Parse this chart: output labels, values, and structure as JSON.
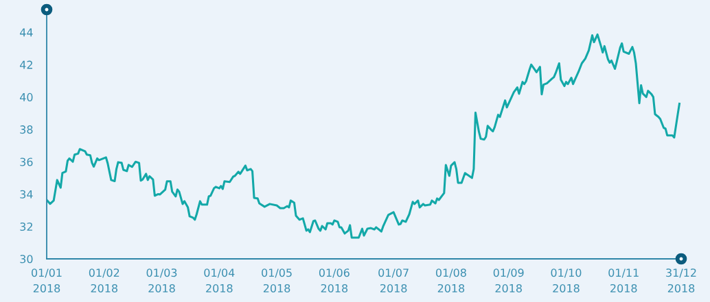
{
  "chart_data": {
    "type": "line",
    "x": [
      "2018-01-01",
      "2018-01-03",
      "2018-01-05",
      "2018-01-07",
      "2018-01-09",
      "2018-01-10",
      "2018-01-12",
      "2018-01-13",
      "2018-01-14",
      "2018-01-16",
      "2018-01-17",
      "2018-01-19",
      "2018-01-20",
      "2018-01-23",
      "2018-01-24",
      "2018-01-26",
      "2018-01-27",
      "2018-01-28",
      "2018-01-30",
      "2018-01-31",
      "2018-02-04",
      "2018-02-05",
      "2018-02-07",
      "2018-02-09",
      "2018-02-10",
      "2018-02-11",
      "2018-02-13",
      "2018-02-14",
      "2018-02-16",
      "2018-02-17",
      "2018-02-19",
      "2018-02-21",
      "2018-02-23",
      "2018-02-24",
      "2018-02-25",
      "2018-02-27",
      "2018-02-28",
      "2018-03-01",
      "2018-03-03",
      "2018-03-04",
      "2018-03-06",
      "2018-03-07",
      "2018-03-10",
      "2018-03-11",
      "2018-03-13",
      "2018-03-14",
      "2018-03-16",
      "2018-03-17",
      "2018-03-18",
      "2018-03-20",
      "2018-03-21",
      "2018-03-23",
      "2018-03-24",
      "2018-03-26",
      "2018-03-27",
      "2018-03-28",
      "2018-03-30",
      "2018-03-31",
      "2018-04-03",
      "2018-04-04",
      "2018-04-05",
      "2018-04-07",
      "2018-04-08",
      "2018-04-10",
      "2018-04-11",
      "2018-04-12",
      "2018-04-13",
      "2018-04-16",
      "2018-04-18",
      "2018-04-19",
      "2018-04-21",
      "2018-04-22",
      "2018-04-25",
      "2018-04-26",
      "2018-04-28",
      "2018-04-29",
      "2018-04-30",
      "2018-05-02",
      "2018-05-03",
      "2018-05-06",
      "2018-05-09",
      "2018-05-13",
      "2018-05-15",
      "2018-05-17",
      "2018-05-19",
      "2018-05-20",
      "2018-05-21",
      "2018-05-23",
      "2018-05-24",
      "2018-05-26",
      "2018-05-28",
      "2018-05-30",
      "2018-05-31",
      "2018-06-01",
      "2018-06-03",
      "2018-06-04",
      "2018-06-06",
      "2018-06-07",
      "2018-06-08",
      "2018-06-10",
      "2018-06-11",
      "2018-06-13",
      "2018-06-14",
      "2018-06-15",
      "2018-06-17",
      "2018-06-18",
      "2018-06-19",
      "2018-06-21",
      "2018-06-23",
      "2018-06-24",
      "2018-06-25",
      "2018-06-29",
      "2018-07-01",
      "2018-07-02",
      "2018-07-04",
      "2018-07-06",
      "2018-07-08",
      "2018-07-09",
      "2018-07-12",
      "2018-07-13",
      "2018-07-16",
      "2018-07-19",
      "2018-07-22",
      "2018-07-23",
      "2018-07-24",
      "2018-07-26",
      "2018-07-28",
      "2018-07-30",
      "2018-07-31",
      "2018-08-02",
      "2018-08-03",
      "2018-08-05",
      "2018-08-06",
      "2018-08-09",
      "2018-08-10",
      "2018-08-12",
      "2018-08-13",
      "2018-08-14",
      "2018-08-17",
      "2018-08-18",
      "2018-08-20",
      "2018-08-21",
      "2018-08-23",
      "2018-08-24",
      "2018-08-25",
      "2018-08-27",
      "2018-08-29",
      "2018-09-02",
      "2018-09-03",
      "2018-09-04",
      "2018-09-06",
      "2018-09-07",
      "2018-09-09",
      "2018-09-10",
      "2018-09-11",
      "2018-09-13",
      "2018-09-14",
      "2018-09-15",
      "2018-09-17",
      "2018-09-18",
      "2018-09-21",
      "2018-09-22",
      "2018-09-26",
      "2018-09-28",
      "2018-09-29",
      "2018-10-01",
      "2018-10-02",
      "2018-10-03",
      "2018-10-05",
      "2018-10-06",
      "2018-10-08",
      "2018-10-09",
      "2018-10-11",
      "2018-10-12",
      "2018-10-13",
      "2018-10-15",
      "2018-10-18",
      "2018-10-19",
      "2018-10-20",
      "2018-10-22",
      "2018-10-23",
      "2018-10-25",
      "2018-10-26",
      "2018-10-27",
      "2018-10-29",
      "2018-10-30",
      "2018-10-31",
      "2018-11-02",
      "2018-11-04",
      "2018-11-06",
      "2018-11-08",
      "2018-11-10",
      "2018-11-11",
      "2018-11-13",
      "2018-11-15",
      "2018-11-16",
      "2018-11-17",
      "2018-11-19",
      "2018-11-20",
      "2018-11-21",
      "2018-11-23",
      "2018-11-24",
      "2018-11-26",
      "2018-11-27",
      "2018-11-28",
      "2018-12-01",
      "2018-12-03",
      "2018-12-04",
      "2018-12-05",
      "2018-12-07",
      "2018-12-08",
      "2018-12-09",
      "2018-12-11",
      "2018-12-12",
      "2018-12-14",
      "2018-12-15",
      "2018-12-16",
      "2018-12-18",
      "2018-12-19",
      "2018-12-21",
      "2018-12-22",
      "2018-12-23",
      "2018-12-26",
      "2018-12-27",
      "2018-12-29",
      "2018-12-30"
    ],
    "series": [
      {
        "color": "#13a8a8",
        "values": [
          33.64,
          33.4,
          33.6,
          34.87,
          34.4,
          35.3,
          35.4,
          36.06,
          36.2,
          36.0,
          36.44,
          36.5,
          36.78,
          36.65,
          36.44,
          36.4,
          35.93,
          35.7,
          36.2,
          36.1,
          36.27,
          35.9,
          34.87,
          34.8,
          35.55,
          35.97,
          35.93,
          35.5,
          35.42,
          35.8,
          35.68,
          36.0,
          35.93,
          34.83,
          34.9,
          35.25,
          34.87,
          35.1,
          34.9,
          33.9,
          34.0,
          33.98,
          34.28,
          34.79,
          34.79,
          34.15,
          33.86,
          34.28,
          34.15,
          33.39,
          33.56,
          33.18,
          32.63,
          32.54,
          32.42,
          32.75,
          33.56,
          33.35,
          33.35,
          33.86,
          33.9,
          34.36,
          34.45,
          34.36,
          34.5,
          34.32,
          34.79,
          34.75,
          35.08,
          35.13,
          35.38,
          35.25,
          35.76,
          35.47,
          35.55,
          35.42,
          33.77,
          33.73,
          33.43,
          33.22,
          33.39,
          33.3,
          33.13,
          33.13,
          33.26,
          33.18,
          33.6,
          33.47,
          32.67,
          32.42,
          32.5,
          31.74,
          31.82,
          31.65,
          32.33,
          32.37,
          31.86,
          31.74,
          32.03,
          31.82,
          32.2,
          32.2,
          32.12,
          32.37,
          32.29,
          31.95,
          31.95,
          31.57,
          31.74,
          32.08,
          31.31,
          31.31,
          31.86,
          31.44,
          31.86,
          31.9,
          31.82,
          31.95,
          31.69,
          32.0,
          32.71,
          32.88,
          32.12,
          32.16,
          32.37,
          32.29,
          32.75,
          33.52,
          33.39,
          33.6,
          33.18,
          33.39,
          33.3,
          33.35,
          33.6,
          33.43,
          33.73,
          33.64,
          34.07,
          35.8,
          35.13,
          35.76,
          35.97,
          35.55,
          34.7,
          34.7,
          35.3,
          35.0,
          35.55,
          39.03,
          37.84,
          37.42,
          37.37,
          37.54,
          38.22,
          37.97,
          37.88,
          38.14,
          38.9,
          38.77,
          39.79,
          39.36,
          40.3,
          40.59,
          40.2,
          40.93,
          40.8,
          40.97,
          41.69,
          42.0,
          41.69,
          41.53,
          41.86,
          40.17,
          40.76,
          40.85,
          41.14,
          41.23,
          41.48,
          42.08,
          41.06,
          40.68,
          40.93,
          40.8,
          41.19,
          40.8,
          41.06,
          41.53,
          42.08,
          42.37,
          42.88,
          43.81,
          43.39,
          43.86,
          43.14,
          42.75,
          43.14,
          42.33,
          42.12,
          42.25,
          41.74,
          42.16,
          43.05,
          43.31,
          42.8,
          42.67,
          43.09,
          42.75,
          42.08,
          39.62,
          40.72,
          40.21,
          40.0,
          40.38,
          40.17,
          40.0,
          38.94,
          38.77,
          38.64,
          38.09,
          38.05,
          37.63,
          37.63,
          37.5,
          38.9,
          39.58
        ]
      }
    ],
    "xlim": [
      "2018-01-01",
      "2018-12-31"
    ],
    "xticks": [
      {
        "value": "2018-01-01",
        "label": "01/01\n2018"
      },
      {
        "value": "2018-02-03",
        "label": "01/02\n2018"
      },
      {
        "value": "2018-03-08",
        "label": "01/03\n2018"
      },
      {
        "value": "2018-04-10",
        "label": "01/04\n2018"
      },
      {
        "value": "2018-05-13",
        "label": "01/05\n2018"
      },
      {
        "value": "2018-06-15",
        "label": "01/06\n2018"
      },
      {
        "value": "2018-07-19",
        "label": "01/07\n2018"
      },
      {
        "value": "2018-08-21",
        "label": "01/08\n2018"
      },
      {
        "value": "2018-09-23",
        "label": "01/09\n2018"
      },
      {
        "value": "2018-10-26",
        "label": "01/10\n2018"
      },
      {
        "value": "2018-11-28",
        "label": "01/11\n2018"
      },
      {
        "value": "2018-12-31",
        "label": "31/12\n2018"
      }
    ],
    "ylim": [
      30,
      45.4
    ],
    "yticks": [
      30,
      32,
      34,
      36,
      38,
      40,
      42,
      44
    ],
    "grid": false,
    "marker": "none",
    "line_style": "solid"
  }
}
